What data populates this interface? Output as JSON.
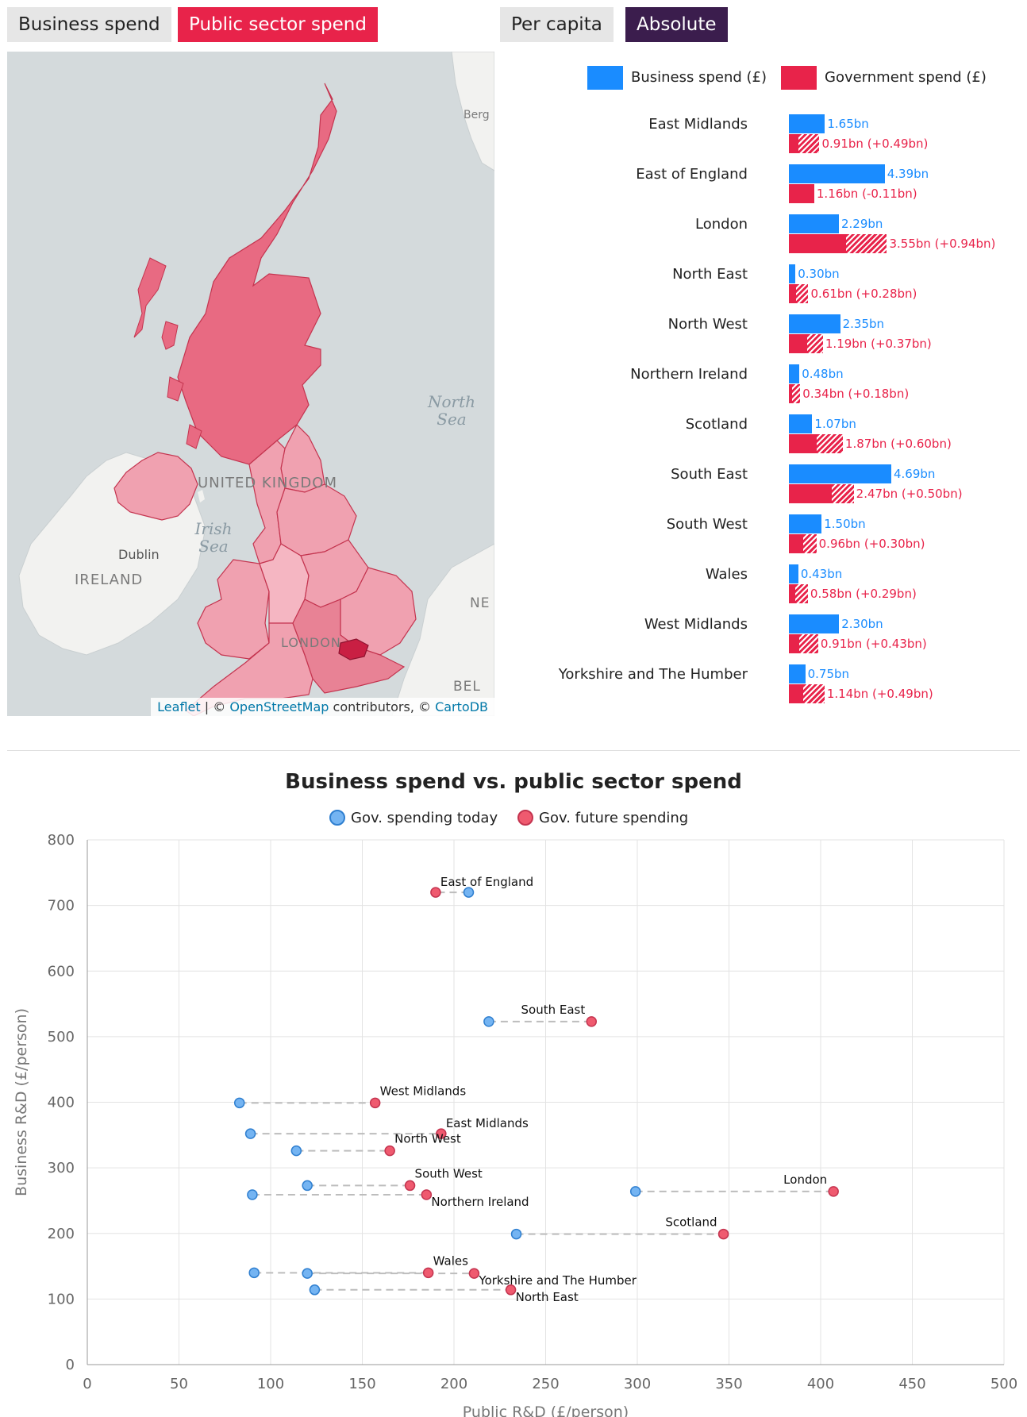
{
  "toggles": {
    "business_spend": "Business spend",
    "public_sector_spend": "Public sector spend",
    "per_capita": "Per capita",
    "absolute": "Absolute"
  },
  "map": {
    "labels": {
      "north_sea": "North\nSea",
      "irish_sea": "Irish\nSea",
      "united_kingdom": "UNITED KINGDOM",
      "ireland": "IRELAND",
      "dublin": "Dublin",
      "london": "LONDON",
      "bergen": "Berg",
      "netherlands": "NE",
      "belgium": "BEL"
    },
    "attribution": {
      "leaflet": "Leaflet",
      "sep1": " | © ",
      "osm": "OpenStreetMap",
      "contributors": " contributors, © ",
      "carto": "CartoDB"
    }
  },
  "bar_legend": {
    "business": "Business spend (£)",
    "government": "Government spend (£)"
  },
  "colors": {
    "business": "#1a8cff",
    "government": "#e8234a",
    "scatter_today": "#74b4f2",
    "scatter_future": "#ef5a6f"
  },
  "bar_chart": {
    "type": "bar",
    "unit": "bn",
    "regions": [
      {
        "name": "East Midlands",
        "business": 1.65,
        "business_label": "1.65bn",
        "gov": 0.91,
        "gov_change": 0.49,
        "gov_label": "0.91bn (+0.49bn)"
      },
      {
        "name": "East of England",
        "business": 4.39,
        "business_label": "4.39bn",
        "gov": 1.16,
        "gov_change": -0.11,
        "gov_label": "1.16bn (-0.11bn)"
      },
      {
        "name": "London",
        "business": 2.29,
        "business_label": "2.29bn",
        "gov": 3.55,
        "gov_change": 0.94,
        "gov_label": "3.55bn (+0.94bn)"
      },
      {
        "name": "North East",
        "business": 0.3,
        "business_label": "0.30bn",
        "gov": 0.61,
        "gov_change": 0.28,
        "gov_label": "0.61bn (+0.28bn)"
      },
      {
        "name": "North West",
        "business": 2.35,
        "business_label": "2.35bn",
        "gov": 1.19,
        "gov_change": 0.37,
        "gov_label": "1.19bn (+0.37bn)"
      },
      {
        "name": "Northern Ireland",
        "business": 0.48,
        "business_label": "0.48bn",
        "gov": 0.34,
        "gov_change": 0.18,
        "gov_label": "0.34bn (+0.18bn)"
      },
      {
        "name": "Scotland",
        "business": 1.07,
        "business_label": "1.07bn",
        "gov": 1.87,
        "gov_change": 0.6,
        "gov_label": "1.87bn (+0.60bn)"
      },
      {
        "name": "South East",
        "business": 4.69,
        "business_label": "4.69bn",
        "gov": 2.47,
        "gov_change": 0.5,
        "gov_label": "2.47bn (+0.50bn)"
      },
      {
        "name": "South West",
        "business": 1.5,
        "business_label": "1.50bn",
        "gov": 0.96,
        "gov_change": 0.3,
        "gov_label": "0.96bn (+0.30bn)"
      },
      {
        "name": "Wales",
        "business": 0.43,
        "business_label": "0.43bn",
        "gov": 0.58,
        "gov_change": 0.29,
        "gov_label": "0.58bn (+0.29bn)"
      },
      {
        "name": "West Midlands",
        "business": 2.3,
        "business_label": "2.30bn",
        "gov": 0.91,
        "gov_change": 0.43,
        "gov_label": "0.91bn (+0.43bn)"
      },
      {
        "name": "Yorkshire and The Humber",
        "business": 0.75,
        "business_label": "0.75bn",
        "gov": 1.14,
        "gov_change": 0.49,
        "gov_label": "1.14bn (+0.49bn)"
      }
    ]
  },
  "chart_data": {
    "type": "scatter",
    "title": "Business spend vs. public sector spend",
    "xlabel": "Public R&D (£/person)",
    "ylabel": "Business R&D (£/person)",
    "xlim": [
      0,
      500
    ],
    "ylim": [
      0,
      800
    ],
    "xticks": [
      0,
      50,
      100,
      150,
      200,
      250,
      300,
      350,
      400,
      450,
      500
    ],
    "yticks": [
      0,
      100,
      200,
      300,
      400,
      500,
      600,
      700,
      800
    ],
    "grid": true,
    "legend_position": "top",
    "series": [
      {
        "name": "Gov. spending today"
      },
      {
        "name": "Gov. future spending"
      }
    ],
    "points": [
      {
        "region": "East of England",
        "today": 208,
        "future": 190,
        "y": 720
      },
      {
        "region": "South East",
        "today": 219,
        "future": 275,
        "y": 523
      },
      {
        "region": "West Midlands",
        "today": 83,
        "future": 157,
        "y": 399
      },
      {
        "region": "East Midlands",
        "today": 89,
        "future": 193,
        "y": 352
      },
      {
        "region": "North West",
        "today": 114,
        "future": 165,
        "y": 326
      },
      {
        "region": "South West",
        "today": 120,
        "future": 176,
        "y": 273
      },
      {
        "region": "Northern Ireland",
        "today": 90,
        "future": 185,
        "y": 259
      },
      {
        "region": "London",
        "today": 299,
        "future": 407,
        "y": 264
      },
      {
        "region": "Scotland",
        "today": 234,
        "future": 347,
        "y": 199
      },
      {
        "region": "Wales",
        "today": 91,
        "future": 186,
        "y": 140
      },
      {
        "region": "Yorkshire and The Humber",
        "today": 120,
        "future": 211,
        "y": 139
      },
      {
        "region": "North East",
        "today": 124,
        "future": 231,
        "y": 114
      }
    ]
  }
}
